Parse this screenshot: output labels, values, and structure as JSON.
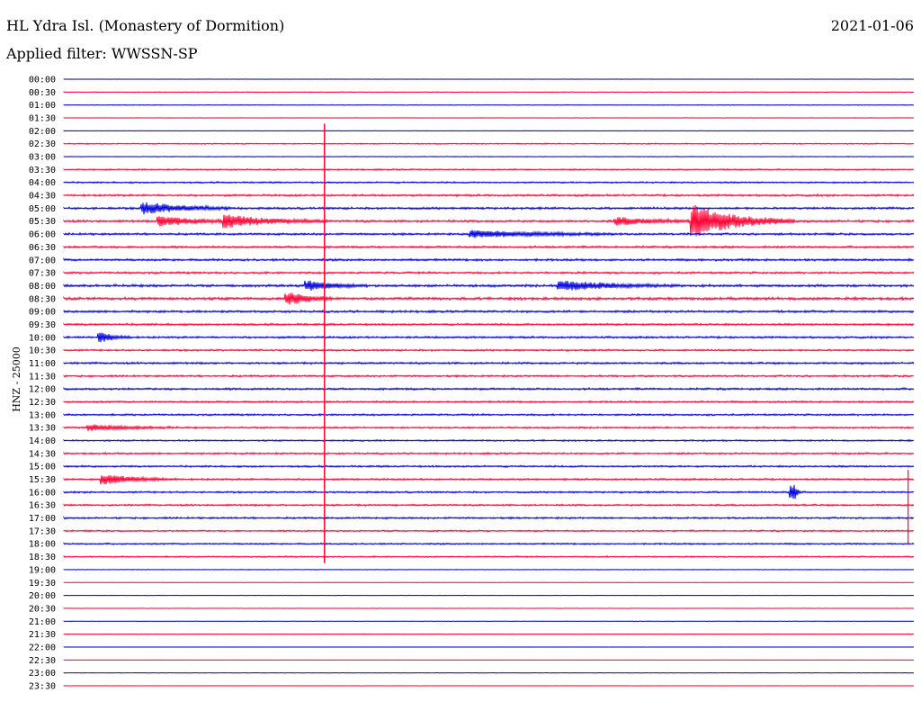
{
  "header": {
    "station": "HL Ydra Isl. (Monastery of Dormition)",
    "date": "2021-01-06",
    "filter": "Applied filter: WWSSN-SP",
    "channel_label": "HNZ - 25000"
  },
  "colors": {
    "odd_row": "#0000dd",
    "even_row": "#ff0033",
    "background": "#ffffff"
  },
  "chart_data": {
    "type": "line",
    "title": "HL Ydra Isl. (Monastery of Dormition)",
    "ylabel": "HNZ - 25000",
    "tick_labels": [
      "00:00",
      "00:30",
      "01:00",
      "01:30",
      "02:00",
      "02:30",
      "03:00",
      "03:30",
      "04:00",
      "04:30",
      "05:00",
      "05:30",
      "06:00",
      "06:30",
      "07:00",
      "07:30",
      "08:00",
      "08:30",
      "09:00",
      "09:30",
      "10:00",
      "10:30",
      "11:00",
      "11:30",
      "12:00",
      "12:30",
      "13:00",
      "13:30",
      "14:00",
      "14:30",
      "15:00",
      "15:30",
      "16:00",
      "16:30",
      "17:00",
      "17:30",
      "18:00",
      "18:30",
      "19:00",
      "19:30",
      "20:00",
      "20:30",
      "21:00",
      "21:30",
      "22:00",
      "22:30",
      "23:00",
      "23:30"
    ],
    "trace_minutes": 30,
    "row_noise": [
      0.15,
      0.3,
      0.3,
      0.2,
      0.2,
      0.5,
      0.3,
      0.6,
      0.7,
      0.9,
      1.0,
      1.0,
      0.9,
      0.9,
      1.0,
      0.9,
      1.1,
      1.2,
      1.0,
      0.9,
      0.9,
      0.8,
      0.9,
      0.8,
      0.9,
      0.8,
      0.8,
      0.8,
      0.7,
      0.8,
      0.8,
      0.8,
      0.8,
      0.8,
      0.8,
      0.7,
      0.7,
      0.6,
      0.3,
      0.2,
      0.2,
      0.2,
      0.2,
      0.2,
      0.1,
      0.1,
      0.1,
      0.1
    ],
    "events": [
      {
        "row": 10,
        "minute": 2.9,
        "duration": 3.0,
        "amplitude": 6
      },
      {
        "row": 11,
        "minute": 5.8,
        "duration": 3.5,
        "amplitude": 6
      },
      {
        "row": 11,
        "minute": 3.5,
        "duration": 3.0,
        "amplitude": 5
      },
      {
        "row": 11,
        "minute": 19.6,
        "duration": 3.0,
        "amplitude": 4
      },
      {
        "row": 11,
        "minute": 22.3,
        "duration": 3.5,
        "amplitude": 16
      },
      {
        "row": 12,
        "minute": 14.5,
        "duration": 5.0,
        "amplitude": 4
      },
      {
        "row": 16,
        "minute": 17.6,
        "duration": 4.0,
        "amplitude": 5
      },
      {
        "row": 16,
        "minute": 8.7,
        "duration": 2.0,
        "amplitude": 5
      },
      {
        "row": 17,
        "minute": 8.0,
        "duration": 1.5,
        "amplitude": 6
      },
      {
        "row": 20,
        "minute": 1.4,
        "duration": 1.0,
        "amplitude": 5
      },
      {
        "row": 27,
        "minute": 1.0,
        "duration": 3.0,
        "amplitude": 3
      },
      {
        "row": 31,
        "minute": 1.5,
        "duration": 2.5,
        "amplitude": 5
      },
      {
        "row": 32,
        "minute": 25.8,
        "duration": 0.2,
        "amplitude": 8
      }
    ]
  }
}
